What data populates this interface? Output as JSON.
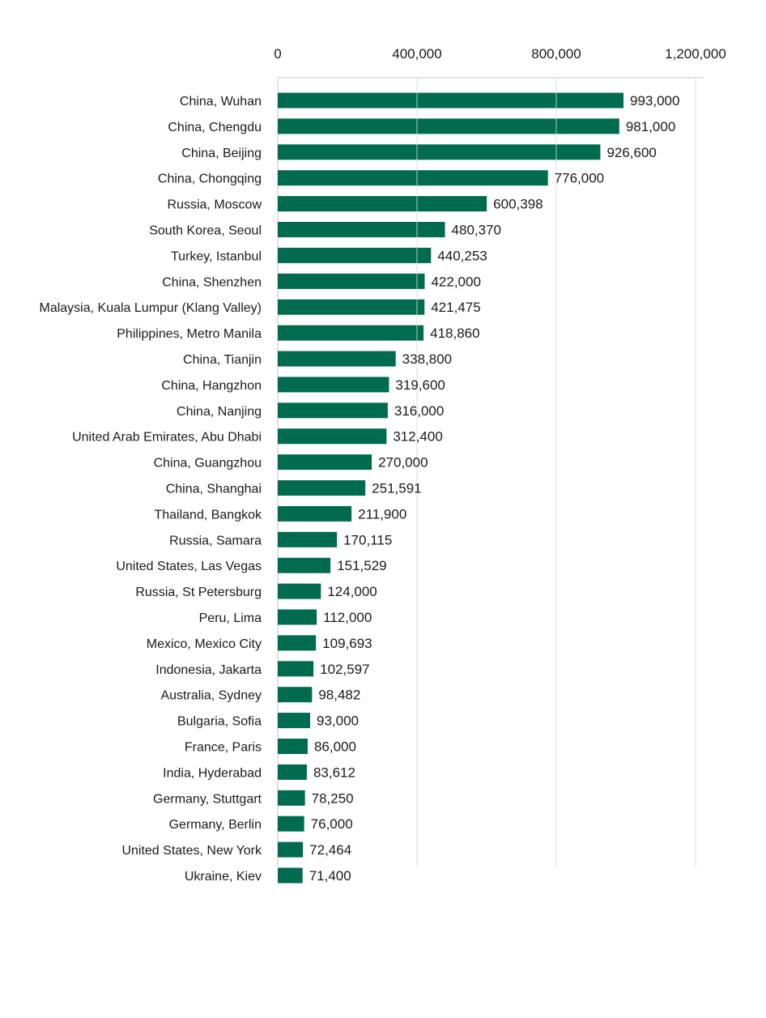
{
  "chart_data": {
    "type": "bar",
    "orientation": "horizontal",
    "title": "",
    "xlabel": "",
    "ylabel": "",
    "xlim": [
      0,
      1200000
    ],
    "x_ticks": [
      0,
      400000,
      800000,
      1200000
    ],
    "x_tick_labels": [
      "0",
      "400,000",
      "800,000",
      "1,200,000"
    ],
    "x_axis_position": "top",
    "grid": true,
    "legend": "none",
    "bar_color": "#006b4f",
    "categories": [
      "China, Wuhan",
      "China, Chengdu",
      "China, Beijing",
      "China, Chongqing",
      "Russia, Moscow",
      "South Korea, Seoul",
      "Turkey, Istanbul",
      "China, Shenzhen",
      "Malaysia, Kuala Lumpur (Klang Valley)",
      "Philippines, Metro Manila",
      "China, Tianjin",
      "China, Hangzhon",
      "China, Nanjing",
      "United Arab Emirates, Abu Dhabi",
      "China, Guangzhou",
      "China, Shanghai",
      "Thailand, Bangkok",
      "Russia, Samara",
      "United States, Las Vegas",
      "Russia, St Petersburg",
      "Peru, Lima",
      "Mexico, Mexico City",
      "Indonesia, Jakarta",
      "Australia, Sydney",
      "Bulgaria, Sofia",
      "France, Paris",
      "India, Hyderabad",
      "Germany, Stuttgart",
      "Germany, Berlin",
      "United States, New York",
      "Ukraine, Kiev"
    ],
    "values": [
      993000,
      981000,
      926600,
      776000,
      600398,
      480370,
      440253,
      422000,
      421475,
      418860,
      338800,
      319600,
      316000,
      312400,
      270000,
      251591,
      211900,
      170115,
      151529,
      124000,
      112000,
      109693,
      102597,
      98482,
      93000,
      86000,
      83612,
      78250,
      76000,
      72464,
      71400
    ],
    "value_labels": [
      "993,000",
      "981,000",
      "926,600",
      "776,000",
      "600,398",
      "480,370",
      "440,253",
      "422,000",
      "421,475",
      "418,860",
      "338,800",
      "319,600",
      "316,000",
      "312,400",
      "270,000",
      "251,591",
      "211,900",
      "170,115",
      "151,529",
      "124,000",
      "112,000",
      "109,693",
      "102,597",
      "98,482",
      "93,000",
      "86,000",
      "83,612",
      "78,250",
      "76,000",
      "72,464",
      "71,400"
    ]
  }
}
